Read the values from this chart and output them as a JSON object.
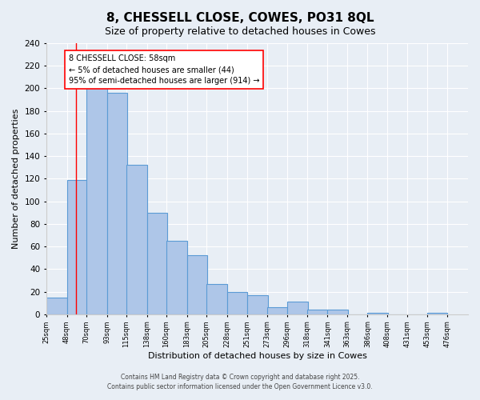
{
  "title": "8, CHESSELL CLOSE, COWES, PO31 8QL",
  "subtitle": "Size of property relative to detached houses in Cowes",
  "xlabel": "Distribution of detached houses by size in Cowes",
  "ylabel": "Number of detached properties",
  "bar_left_edges": [
    25,
    48,
    70,
    93,
    115,
    138,
    160,
    183,
    205,
    228,
    251,
    273,
    296,
    318,
    341,
    363,
    386,
    408,
    431,
    453
  ],
  "bar_heights": [
    15,
    119,
    200,
    196,
    132,
    90,
    65,
    52,
    27,
    20,
    17,
    6,
    11,
    4,
    4,
    0,
    1,
    0,
    0,
    1
  ],
  "bin_width": 23,
  "tick_labels": [
    "25sqm",
    "48sqm",
    "70sqm",
    "93sqm",
    "115sqm",
    "138sqm",
    "160sqm",
    "183sqm",
    "205sqm",
    "228sqm",
    "251sqm",
    "273sqm",
    "296sqm",
    "318sqm",
    "341sqm",
    "363sqm",
    "386sqm",
    "408sqm",
    "431sqm",
    "453sqm",
    "476sqm"
  ],
  "tick_positions": [
    25,
    48,
    70,
    93,
    115,
    138,
    160,
    183,
    205,
    228,
    251,
    273,
    296,
    318,
    341,
    363,
    386,
    408,
    431,
    453,
    476
  ],
  "ylim": [
    0,
    240
  ],
  "yticks": [
    0,
    20,
    40,
    60,
    80,
    100,
    120,
    140,
    160,
    180,
    200,
    220,
    240
  ],
  "bar_fill_color": "#aec6e8",
  "bar_edge_color": "#5b9bd5",
  "red_line_x": 58,
  "annotation_title": "8 CHESSELL CLOSE: 58sqm",
  "annotation_line1": "← 5% of detached houses are smaller (44)",
  "annotation_line2": "95% of semi-detached houses are larger (914) →",
  "background_color": "#e8eef5",
  "plot_background_color": "#e8eef5",
  "footer1": "Contains HM Land Registry data © Crown copyright and database right 2025.",
  "footer2": "Contains public sector information licensed under the Open Government Licence v3.0."
}
